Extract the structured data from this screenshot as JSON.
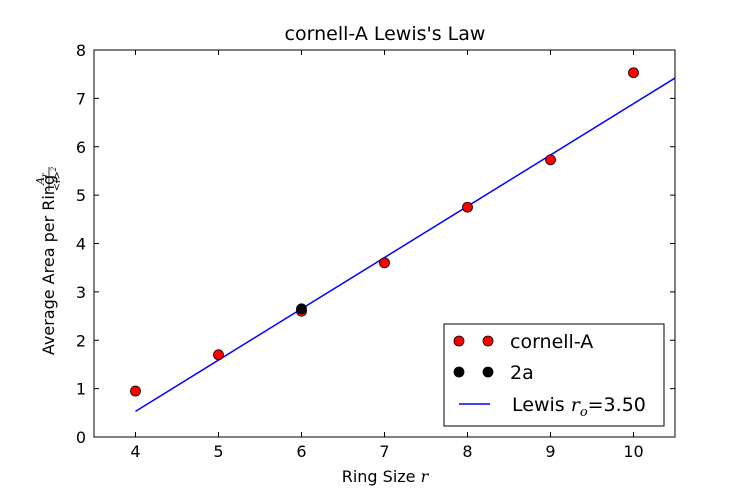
{
  "chart_data": {
    "type": "scatter",
    "title": "cornell-A Lewis's Law",
    "xlabel": "Ring Size",
    "xlabel_var": "r",
    "ylabel": "Average Area per Ring",
    "ylabel_num": "A",
    "ylabel_num_sub": "r",
    "ylabel_den": "<l>",
    "ylabel_den_sup": "2",
    "xlim": [
      3.5,
      10.5
    ],
    "ylim": [
      0,
      8
    ],
    "xticks": [
      "4",
      "5",
      "6",
      "7",
      "8",
      "9",
      "10"
    ],
    "yticks": [
      "0",
      "1",
      "2",
      "3",
      "4",
      "5",
      "6",
      "7",
      "8"
    ],
    "grid": false,
    "legend_position": "lower-right",
    "series": [
      {
        "name": "cornell-A",
        "kind": "markers",
        "color": "#ff0000",
        "points": [
          [
            4,
            0.95
          ],
          [
            5,
            1.7
          ],
          [
            6,
            2.6
          ],
          [
            7,
            3.6
          ],
          [
            8,
            4.75
          ],
          [
            9,
            5.73
          ],
          [
            10,
            7.53
          ]
        ]
      },
      {
        "name": "2a",
        "kind": "markers",
        "color": "#000000",
        "points": [
          [
            6,
            2.65
          ]
        ]
      },
      {
        "name": "Lewis",
        "legend_var": "r",
        "legend_sub": "o",
        "legend_value": "=3.50",
        "kind": "line",
        "color": "#0000ff",
        "points": [
          [
            4,
            0.53
          ],
          [
            10.5,
            7.42
          ]
        ]
      }
    ]
  }
}
